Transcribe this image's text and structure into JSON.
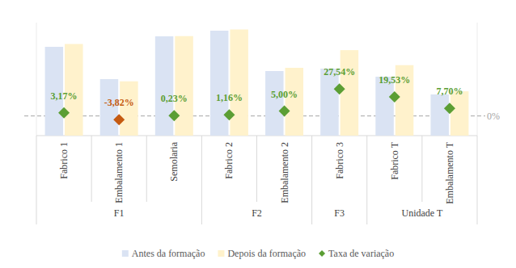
{
  "chart_data": {
    "type": "bar",
    "categories": [
      "Fabrico 1",
      "Embalamento 1",
      "Semolaria",
      "Fabrico 2",
      "Embalamento 2",
      "Fabrico 3",
      "Fabrico T",
      "Embalamento T"
    ],
    "groups": [
      {
        "label": "F1",
        "count": 3
      },
      {
        "label": "F2",
        "count": 2
      },
      {
        "label": "F3",
        "count": 1
      },
      {
        "label": "Unidade T",
        "count": 2
      }
    ],
    "series": [
      {
        "name": "Antes da formação",
        "color": "#dae3f3",
        "values": [
          110,
          70,
          123,
          130,
          80,
          83,
          73,
          51
        ]
      },
      {
        "name": "Depois da formação",
        "color": "#fff2cc",
        "values": [
          113.5,
          67.3,
          123.3,
          131.5,
          84,
          105.9,
          87.3,
          54.9
        ]
      },
      {
        "name": "Taxa de variação",
        "type": "scatter",
        "marker": "diamond",
        "axis": "y2",
        "color": "#5b9e34",
        "colors": [
          "#5b9e34",
          "#c55a11",
          "#5b9e34",
          "#5b9e34",
          "#5b9e34",
          "#5b9e34",
          "#5b9e34",
          "#5b9e34"
        ],
        "values": [
          3.17,
          -3.82,
          0.23,
          1.16,
          5.0,
          27.54,
          19.53,
          7.7
        ],
        "value_labels": [
          "3,17%",
          "-3,82%",
          "0,23%",
          "1,16%",
          "5,00%",
          "27,54%",
          "19,53%",
          "7,70%"
        ],
        "data_labels": true
      }
    ],
    "ylim": [
      0,
      140
    ],
    "y2lim": [
      -20,
      95
    ],
    "y2ticks": [
      {
        "value": 0,
        "label": "0%"
      }
    ],
    "legend": "bottom"
  }
}
